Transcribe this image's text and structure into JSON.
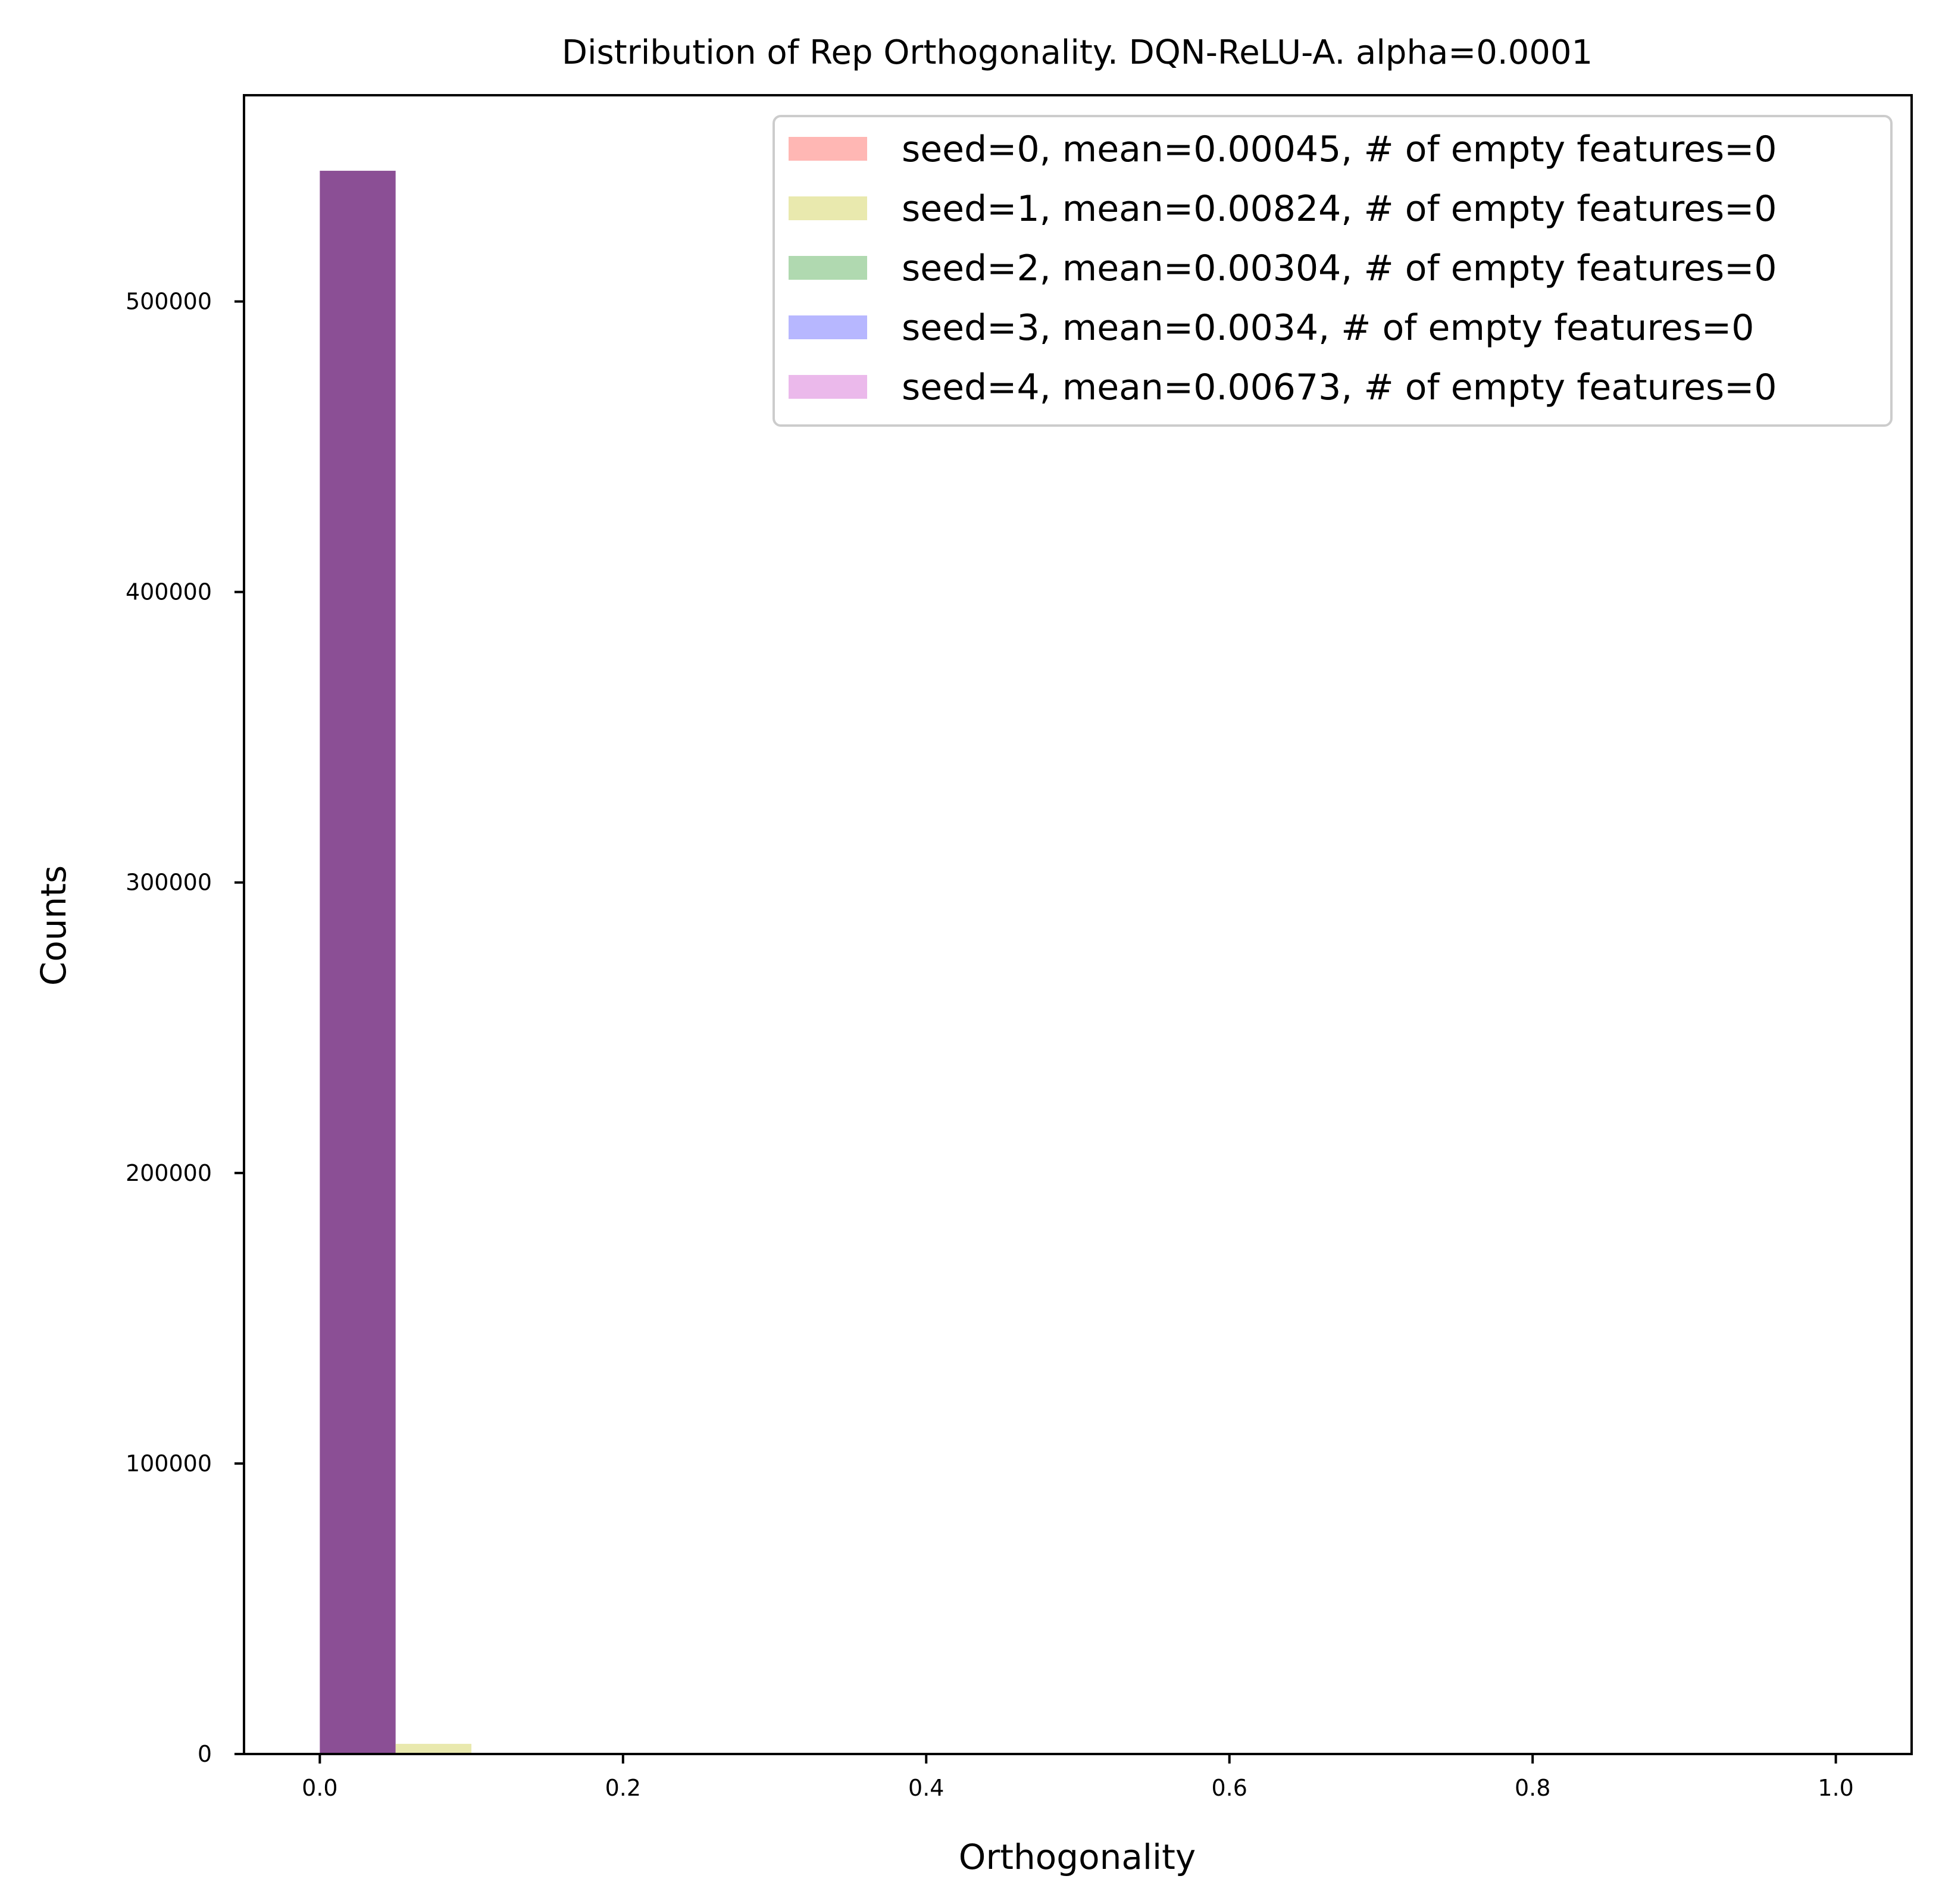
{
  "chart_data": {
    "type": "bar",
    "title": "Distribution of Rep Orthogonality. DQN-ReLU-A. alpha=0.0001",
    "xlabel": "Orthogonality",
    "ylabel": "Counts",
    "xlim": [
      -0.05,
      1.05
    ],
    "ylim": [
      0,
      571000
    ],
    "x_ticks": [
      0.0,
      0.2,
      0.4,
      0.6,
      0.8,
      1.0
    ],
    "x_tick_labels": [
      "0.0",
      "0.2",
      "0.4",
      "0.6",
      "0.8",
      "1.0"
    ],
    "y_ticks": [
      0,
      100000,
      200000,
      300000,
      400000,
      500000
    ],
    "y_tick_labels": [
      "0",
      "100000",
      "200000",
      "300000",
      "400000",
      "500000"
    ],
    "bin_edges": [
      0.0,
      0.05,
      0.1,
      0.15,
      0.2,
      0.25,
      0.3,
      0.35,
      0.4,
      0.45,
      0.5,
      0.55,
      0.6,
      0.65,
      0.7,
      0.75,
      0.8,
      0.85,
      0.9,
      0.95,
      1.0
    ],
    "grid": false,
    "legend_position": "top-right",
    "series": [
      {
        "name": "seed=0, mean=0.00045, # of empty features=0",
        "color": "#ff9994",
        "opacity": 0.7,
        "values": [
          545000,
          0,
          0,
          0,
          0,
          0,
          0,
          0,
          0,
          0,
          0,
          0,
          0,
          0,
          0,
          0,
          0,
          0,
          0,
          0
        ]
      },
      {
        "name": "seed=1, mean=0.00824, # of empty features=0",
        "color": "#e0e08c",
        "opacity": 0.7,
        "values": [
          545000,
          3500,
          0,
          0,
          0,
          0,
          0,
          0,
          0,
          0,
          0,
          0,
          0,
          0,
          0,
          0,
          0,
          0,
          0,
          0
        ]
      },
      {
        "name": "seed=2, mean=0.00304, # of empty features=0",
        "color": "#8fc98f",
        "opacity": 0.7,
        "values": [
          545000,
          0,
          0,
          0,
          0,
          0,
          0,
          0,
          0,
          0,
          0,
          0,
          0,
          0,
          0,
          0,
          0,
          0,
          0,
          0
        ]
      },
      {
        "name": "seed=3, mean=0.0034, # of empty features=0",
        "color": "#9999ff",
        "opacity": 0.7,
        "values": [
          545000,
          0,
          0,
          0,
          0,
          0,
          0,
          0,
          0,
          0,
          0,
          0,
          0,
          0,
          0,
          0,
          0,
          0,
          0,
          0
        ]
      },
      {
        "name": "seed=4, mean=0.00673, # of empty features=0",
        "color": "#e39be3",
        "opacity": 0.7,
        "values": [
          545000,
          0,
          0,
          0,
          0,
          0,
          0,
          0,
          0,
          0,
          0,
          0,
          0,
          0,
          0,
          0,
          0,
          0,
          0,
          0
        ]
      }
    ],
    "overlap_color": "#8b4f95"
  }
}
